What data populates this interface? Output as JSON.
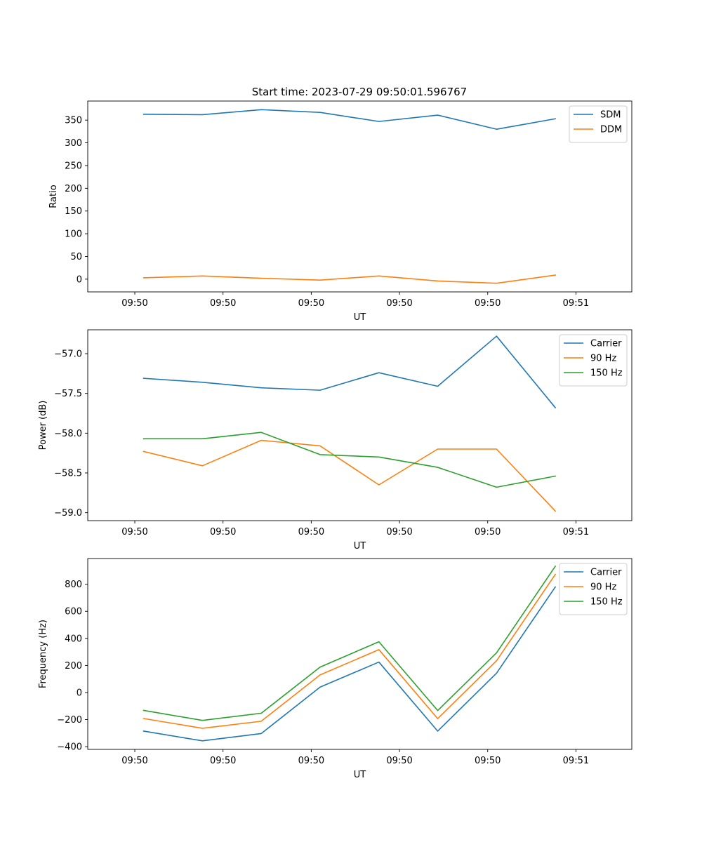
{
  "figure_title": "Start time: 2023-07-29 09:50:01.596767",
  "chart_data": [
    {
      "type": "line",
      "title": "Start time: 2023-07-29 09:50:01.596767",
      "xlabel": "UT",
      "ylabel": "Ratio",
      "xlim": [
        -0.8,
        8.45
      ],
      "x": [
        0.15,
        1.15,
        2.15,
        3.15,
        4.15,
        5.15,
        6.15,
        7.15
      ],
      "xticks": [
        0,
        1.5,
        3,
        4.5,
        6,
        7.5
      ],
      "xticklabels": [
        "09:50",
        "09:50",
        "09:50",
        "09:50",
        "09:50",
        "09:51"
      ],
      "ylim": [
        -28,
        392
      ],
      "yticks": [
        0,
        50,
        100,
        150,
        200,
        250,
        300,
        350
      ],
      "yticklabels": [
        "0",
        "50",
        "100",
        "150",
        "200",
        "250",
        "300",
        "350"
      ],
      "legend": "top-right",
      "series": [
        {
          "name": "SDM",
          "color": "#1f77b4",
          "values": [
            363,
            362,
            373,
            367,
            347,
            361,
            330,
            353
          ]
        },
        {
          "name": "DDM",
          "color": "#ff7f0e",
          "values": [
            3,
            7,
            2,
            -2,
            7,
            -4,
            -9,
            9
          ]
        }
      ]
    },
    {
      "type": "line",
      "title": "",
      "xlabel": "UT",
      "ylabel": "Power (dB)",
      "xlim": [
        -0.8,
        8.45
      ],
      "x": [
        0.15,
        1.15,
        2.15,
        3.15,
        4.15,
        5.15,
        6.15,
        7.15
      ],
      "xticks": [
        0,
        1.5,
        3,
        4.5,
        6,
        7.5
      ],
      "xticklabels": [
        "09:50",
        "09:50",
        "09:50",
        "09:50",
        "09:50",
        "09:51"
      ],
      "ylim": [
        -59.1,
        -56.7
      ],
      "yticks": [
        -59.0,
        -58.5,
        -58.0,
        -57.5,
        -57.0
      ],
      "yticklabels": [
        "−59.0",
        "−58.5",
        "−58.0",
        "−57.5",
        "−57.0"
      ],
      "legend": "top-right",
      "series": [
        {
          "name": "Carrier",
          "color": "#1f77b4",
          "values": [
            -57.31,
            -57.36,
            -57.43,
            -57.46,
            -57.24,
            -57.41,
            -56.78,
            -57.68
          ]
        },
        {
          "name": "90 Hz",
          "color": "#ff7f0e",
          "values": [
            -58.23,
            -58.41,
            -58.09,
            -58.16,
            -58.65,
            -58.2,
            -58.2,
            -58.98
          ]
        },
        {
          "name": "150 Hz",
          "color": "#2ca02c",
          "values": [
            -58.07,
            -58.07,
            -57.99,
            -58.27,
            -58.3,
            -58.43,
            -58.68,
            -58.54
          ]
        }
      ]
    },
    {
      "type": "line",
      "title": "",
      "xlabel": "UT",
      "ylabel": "Frequency (Hz)",
      "xlim": [
        -0.8,
        8.45
      ],
      "x": [
        0.15,
        1.15,
        2.15,
        3.15,
        4.15,
        5.15,
        6.15,
        7.15
      ],
      "xticks": [
        0,
        1.5,
        3,
        4.5,
        6,
        7.5
      ],
      "xticklabels": [
        "09:50",
        "09:50",
        "09:50",
        "09:50",
        "09:50",
        "09:51"
      ],
      "ylim": [
        -420,
        990
      ],
      "yticks": [
        -400,
        -200,
        0,
        200,
        400,
        600,
        800
      ],
      "yticklabels": [
        "−400",
        "−200",
        "0",
        "200",
        "400",
        "600",
        "800"
      ],
      "legend": "top-right",
      "series": [
        {
          "name": "Carrier",
          "color": "#1f77b4",
          "values": [
            -285,
            -357,
            -303,
            40,
            225,
            -285,
            143,
            780
          ]
        },
        {
          "name": "90 Hz",
          "color": "#ff7f0e",
          "values": [
            -192,
            -264,
            -212,
            130,
            317,
            -193,
            235,
            873
          ]
        },
        {
          "name": "150 Hz",
          "color": "#2ca02c",
          "values": [
            -132,
            -206,
            -153,
            188,
            375,
            -133,
            293,
            933
          ]
        }
      ]
    }
  ]
}
